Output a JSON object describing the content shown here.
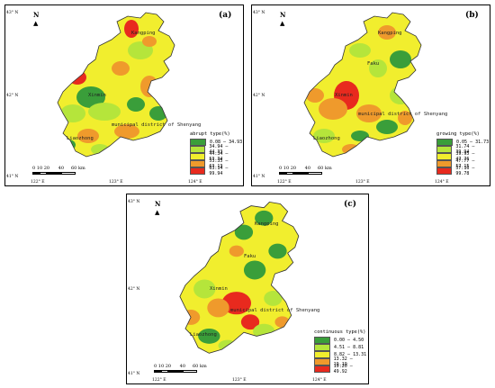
{
  "colors": {
    "c1": "#3a9e3a",
    "c2": "#b5e53b",
    "c3": "#f1ee2e",
    "c4": "#ef9a2c",
    "c5": "#e82a1e"
  },
  "axes": {
    "x_ticks": [
      "122° E",
      "123° E",
      "124° E"
    ],
    "y_ticks": [
      "43° N",
      "42° N",
      "41° N"
    ]
  },
  "north_label": "N",
  "scale_labels": [
    "0",
    "10",
    "20",
    "40",
    "60",
    "km"
  ],
  "places": {
    "kangping": "Kangping",
    "faku": "Faku",
    "xinmin": "Xinmin",
    "municipal": "municipal district of Shenyang",
    "liaozhong": "Liaozhong"
  },
  "panels": [
    {
      "tag": "(a)",
      "legend_title": "abrupt type(%)",
      "legend_items": [
        "0.08 — 34.93",
        "34.94 — 44.33",
        "44.34 — 53.34",
        "53.35 — 63.13",
        "63.14 — 99.94"
      ]
    },
    {
      "tag": "(b)",
      "legend_title": "growing type(%)",
      "legend_items": [
        "0.05 — 31.73",
        "31.74 — 39.94",
        "39.95 — 47.76",
        "47.77 — 57.15",
        "57.16 — 99.78"
      ]
    },
    {
      "tag": "(c)",
      "legend_title": "continuous type(%)",
      "legend_items": [
        "0.00 — 4.50",
        "4.51 — 8.81",
        "8.82 — 13.31",
        "13.32 — 19.19",
        "19.20 — 49.92"
      ]
    }
  ]
}
